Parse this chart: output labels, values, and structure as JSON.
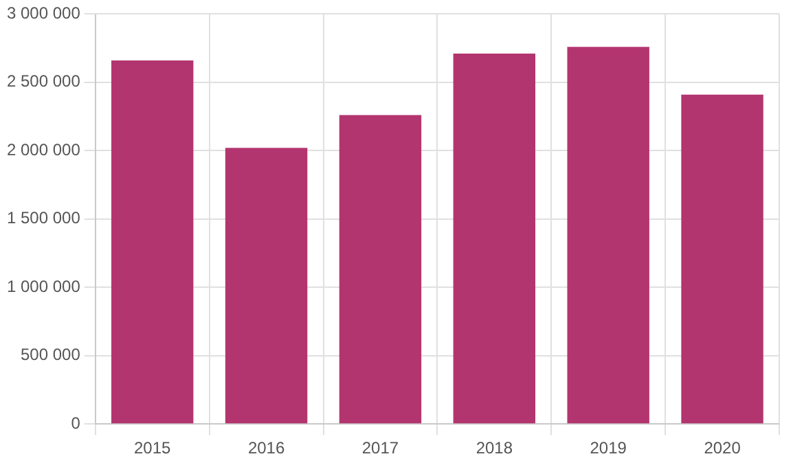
{
  "chart_data": {
    "type": "bar",
    "categories": [
      "2015",
      "2016",
      "2017",
      "2018",
      "2019",
      "2020"
    ],
    "values": [
      2660000,
      2020000,
      2260000,
      2710000,
      2760000,
      2410000
    ],
    "color": "#b3356f",
    "ylim": [
      0,
      3000000
    ],
    "yticks": [
      {
        "value": 0,
        "label": "0"
      },
      {
        "value": 500000,
        "label": "500 000"
      },
      {
        "value": 1000000,
        "label": "1 000 000"
      },
      {
        "value": 1500000,
        "label": "1 500 000"
      },
      {
        "value": 2000000,
        "label": "2 000 000"
      },
      {
        "value": 2500000,
        "label": "2 500 000"
      },
      {
        "value": 3000000,
        "label": "3 000 000"
      }
    ],
    "grid": true
  }
}
